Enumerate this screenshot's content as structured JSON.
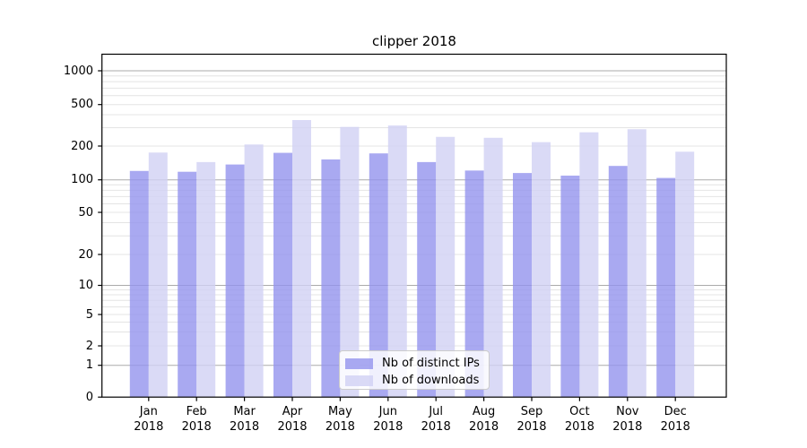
{
  "chart_data": {
    "type": "bar",
    "title": "clipper 2018",
    "categories": [
      "Jan",
      "Feb",
      "Mar",
      "Apr",
      "May",
      "Jun",
      "Jul",
      "Aug",
      "Sep",
      "Oct",
      "Nov",
      "Dec"
    ],
    "year_label": "2018",
    "series": [
      {
        "name": "Nb of distinct IPs",
        "color": "#9393ee",
        "values": [
          120,
          118,
          137,
          174,
          152,
          172,
          144,
          121,
          115,
          109,
          133,
          104
        ]
      },
      {
        "name": "Nb of downloads",
        "color": "#d1d1f4",
        "values": [
          175,
          144,
          207,
          355,
          305,
          315,
          245,
          240,
          218,
          271,
          290,
          178
        ]
      }
    ],
    "yticks": [
      0,
      1,
      2,
      5,
      10,
      20,
      50,
      100,
      200,
      500,
      1000
    ],
    "ylim": [
      0,
      1400
    ],
    "yscale": "symlog",
    "grid": true,
    "legend_position": "lower center"
  }
}
